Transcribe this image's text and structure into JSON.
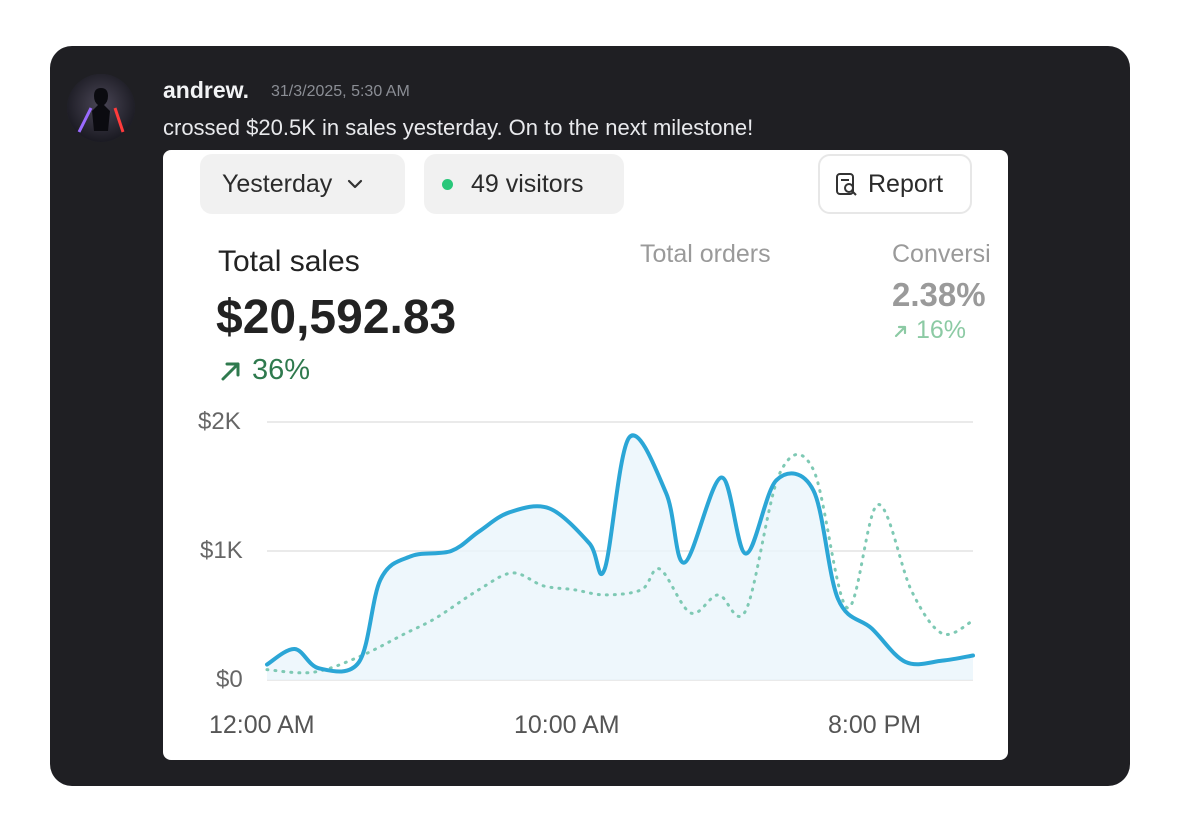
{
  "message": {
    "username": "andrew.",
    "timestamp": "31/3/2025, 5:30 AM",
    "text": "crossed $20.5K in sales yesterday. On to the next milestone!"
  },
  "dashboard": {
    "period_label": "Yesterday",
    "visitors_label": "49 visitors",
    "report_label": "Report",
    "metrics": [
      {
        "label": "Total sales",
        "value": "$20,592.83",
        "change": "36%"
      },
      {
        "label": "Total orders"
      },
      {
        "label": "Conversi",
        "value": "2.38%",
        "change": "16%"
      }
    ],
    "colors": {
      "primary_line": "#2ba6d6",
      "comparison_line": "#7ec9b4",
      "positive": "#2f7a4e",
      "status_dot": "#29c77a"
    }
  },
  "chart_data": {
    "type": "area",
    "y_ticks": [
      "$2K",
      "$1K",
      "$0"
    ],
    "x_ticks": [
      "12:00 AM",
      "10:00 AM",
      "8:00 PM"
    ],
    "ylim": [
      0,
      2000
    ],
    "xlim": [
      0,
      23
    ],
    "grid": true,
    "series": [
      {
        "style": "solid",
        "points": [
          [
            0,
            120
          ],
          [
            0.9,
            240
          ],
          [
            1.7,
            90
          ],
          [
            3,
            140
          ],
          [
            3.7,
            780
          ],
          [
            4.7,
            960
          ],
          [
            6,
            1000
          ],
          [
            6.9,
            1150
          ],
          [
            7.9,
            1300
          ],
          [
            9.2,
            1330
          ],
          [
            10.5,
            1060
          ],
          [
            11,
            860
          ],
          [
            11.8,
            1880
          ],
          [
            13,
            1450
          ],
          [
            13.6,
            910
          ],
          [
            14.8,
            1570
          ],
          [
            15.6,
            980
          ],
          [
            16.6,
            1550
          ],
          [
            17.8,
            1470
          ],
          [
            18.6,
            630
          ],
          [
            19.7,
            400
          ],
          [
            20.8,
            140
          ],
          [
            22,
            150
          ],
          [
            23,
            190
          ]
        ]
      },
      {
        "style": "dotted",
        "points": [
          [
            0,
            80
          ],
          [
            1.5,
            60
          ],
          [
            3,
            180
          ],
          [
            4.5,
            360
          ],
          [
            5.5,
            480
          ],
          [
            6.9,
            700
          ],
          [
            8,
            830
          ],
          [
            9,
            730
          ],
          [
            10,
            700
          ],
          [
            11,
            660
          ],
          [
            12.2,
            700
          ],
          [
            12.8,
            860
          ],
          [
            13.8,
            520
          ],
          [
            14.7,
            660
          ],
          [
            15.6,
            540
          ],
          [
            16.7,
            1600
          ],
          [
            17.8,
            1630
          ],
          [
            18.9,
            560
          ],
          [
            19.9,
            1360
          ],
          [
            21,
            690
          ],
          [
            22,
            360
          ],
          [
            23,
            460
          ]
        ]
      }
    ]
  }
}
